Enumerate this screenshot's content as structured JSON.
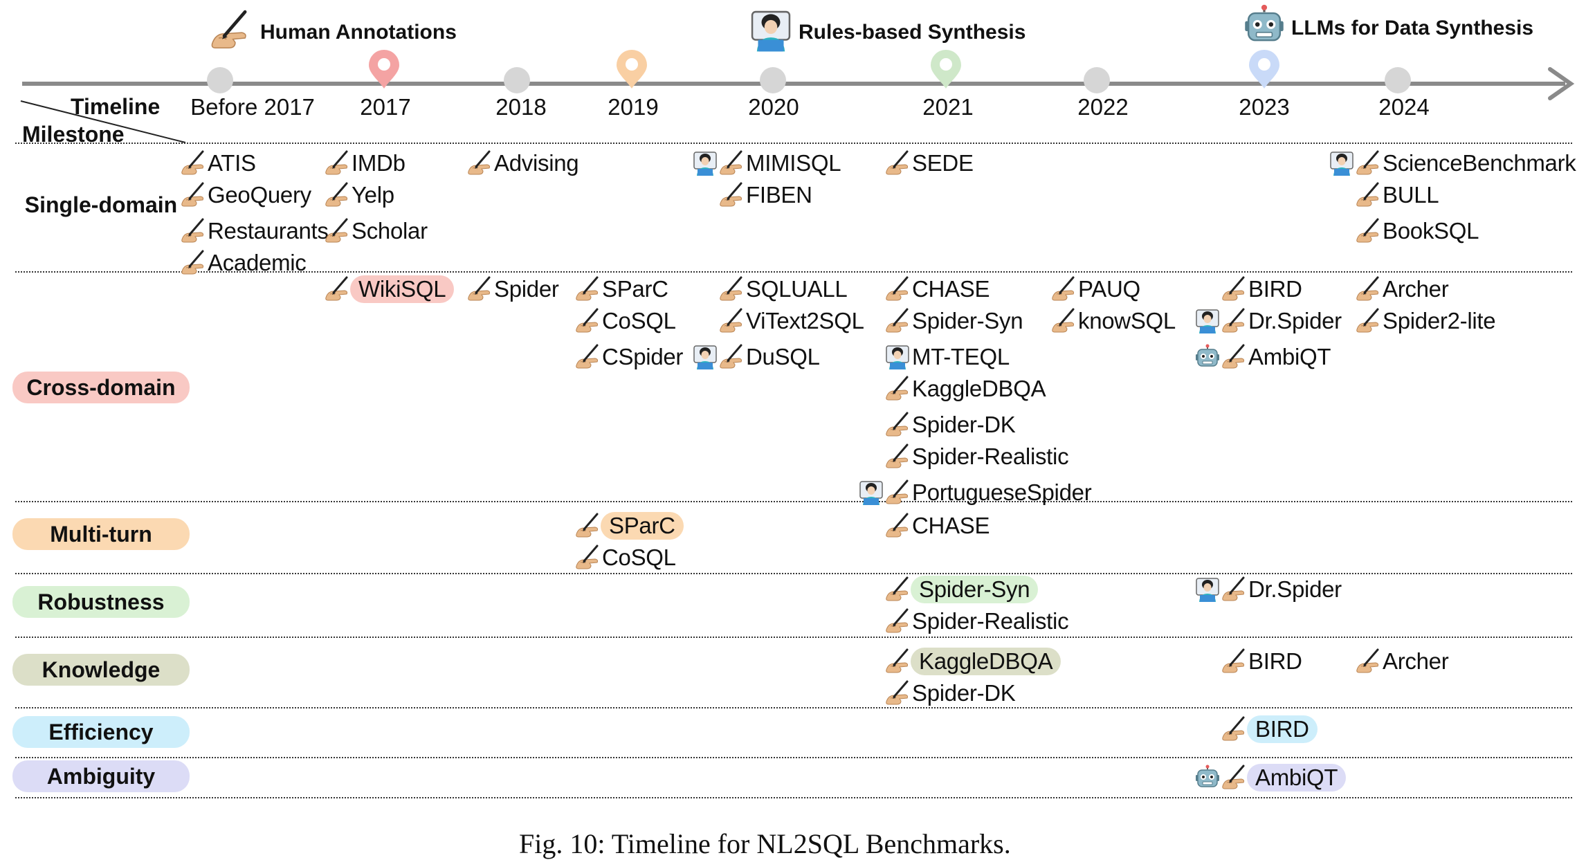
{
  "legend": {
    "human": "Human Annotations",
    "rules": "Rules-based Synthesis",
    "llm": "LLMs for Data Synthesis"
  },
  "axis": {
    "corner_timeline": "Timeline",
    "corner_milestone": "Milestone",
    "years": [
      "Before 2017",
      "2017",
      "2018",
      "2019",
      "2020",
      "2021",
      "2022",
      "2023",
      "2024"
    ]
  },
  "colors": {
    "cross_domain": "#f9c9c4",
    "multi_turn": "#fbd9b2",
    "robustness": "#d9f1d4",
    "knowledge": "#dcdfc8",
    "efficiency": "#cdeefb",
    "ambiguity": "#dcdcf6",
    "timeline": "#8a8a8a",
    "year_dot": "#d6d6d6"
  },
  "markers": [
    {
      "year": "2017",
      "color": "#f4a3a3"
    },
    {
      "year": "2019",
      "color": "#f9cfa3"
    },
    {
      "year": "2021",
      "color": "#cfe8c9"
    },
    {
      "year": "2023",
      "color": "#c9daf8"
    }
  ],
  "rows": [
    {
      "id": "single",
      "label": "Single-domain",
      "color": "",
      "items": [
        {
          "col": "Before 2017",
          "line": 0,
          "icons": [
            "human"
          ],
          "name": "ATIS"
        },
        {
          "col": "Before 2017",
          "line": 1,
          "icons": [
            "human"
          ],
          "name": "GeoQuery"
        },
        {
          "col": "Before 2017",
          "line": 2,
          "icons": [
            "human"
          ],
          "name": "Restaurants"
        },
        {
          "col": "Before 2017",
          "line": 3,
          "icons": [
            "human"
          ],
          "name": "Academic"
        },
        {
          "col": "2017",
          "line": 0,
          "icons": [
            "human"
          ],
          "name": "IMDb"
        },
        {
          "col": "2017",
          "line": 1,
          "icons": [
            "human"
          ],
          "name": "Yelp"
        },
        {
          "col": "2017",
          "line": 2,
          "icons": [
            "human"
          ],
          "name": "Scholar"
        },
        {
          "col": "2018",
          "line": 0,
          "icons": [
            "human"
          ],
          "name": "Advising"
        },
        {
          "col": "2020",
          "line": 0,
          "icons": [
            "rules",
            "human"
          ],
          "name": "MIMISQL"
        },
        {
          "col": "2020",
          "line": 1,
          "icons": [
            "human"
          ],
          "name": "FIBEN"
        },
        {
          "col": "2021",
          "line": 0,
          "icons": [
            "human"
          ],
          "name": "SEDE"
        },
        {
          "col": "2024",
          "line": 0,
          "icons": [
            "rules",
            "human"
          ],
          "name": "ScienceBenchmark"
        },
        {
          "col": "2024",
          "line": 1,
          "icons": [
            "human"
          ],
          "name": "BULL"
        },
        {
          "col": "2024",
          "line": 2,
          "icons": [
            "human"
          ],
          "name": "BookSQL"
        }
      ]
    },
    {
      "id": "cross",
      "label": "Cross-domain",
      "color": "#f9c9c4",
      "items": [
        {
          "col": "2017",
          "line": 0,
          "icons": [
            "human"
          ],
          "name": "WikiSQL",
          "hl": true
        },
        {
          "col": "2018",
          "line": 0,
          "icons": [
            "human"
          ],
          "name": "Spider"
        },
        {
          "col": "2019",
          "line": 0,
          "icons": [
            "human"
          ],
          "name": "SParC"
        },
        {
          "col": "2019",
          "line": 1,
          "icons": [
            "human"
          ],
          "name": "CoSQL"
        },
        {
          "col": "2019",
          "line": 2,
          "icons": [
            "human"
          ],
          "name": "CSpider"
        },
        {
          "col": "2020",
          "line": 0,
          "icons": [
            "human"
          ],
          "name": "SQLUALL"
        },
        {
          "col": "2020",
          "line": 1,
          "icons": [
            "human"
          ],
          "name": "ViText2SQL"
        },
        {
          "col": "2020",
          "line": 2,
          "icons": [
            "rules",
            "human"
          ],
          "name": "DuSQL"
        },
        {
          "col": "2021",
          "line": 0,
          "icons": [
            "human"
          ],
          "name": "CHASE"
        },
        {
          "col": "2021",
          "line": 1,
          "icons": [
            "human"
          ],
          "name": "Spider-Syn"
        },
        {
          "col": "2021",
          "line": 2,
          "icons": [
            "rules"
          ],
          "name": "MT-TEQL"
        },
        {
          "col": "2021",
          "line": 3,
          "icons": [
            "human"
          ],
          "name": "KaggleDBQA"
        },
        {
          "col": "2021",
          "line": 4,
          "icons": [
            "human"
          ],
          "name": "Spider-DK"
        },
        {
          "col": "2021",
          "line": 5,
          "icons": [
            "human"
          ],
          "name": "Spider-Realistic"
        },
        {
          "col": "2021",
          "line": 6,
          "icons": [
            "rules",
            "human"
          ],
          "name": "PortugueseSpider"
        },
        {
          "col": "2022",
          "line": 0,
          "icons": [
            "human"
          ],
          "name": "PAUQ"
        },
        {
          "col": "2022",
          "line": 1,
          "icons": [
            "human"
          ],
          "name": "knowSQL"
        },
        {
          "col": "2023",
          "line": 0,
          "icons": [
            "human"
          ],
          "name": "BIRD"
        },
        {
          "col": "2023",
          "line": 1,
          "icons": [
            "rules",
            "human"
          ],
          "name": "Dr.Spider"
        },
        {
          "col": "2023",
          "line": 2,
          "icons": [
            "llm",
            "human"
          ],
          "name": "AmbiQT"
        },
        {
          "col": "2024",
          "line": 0,
          "icons": [
            "human"
          ],
          "name": "Archer"
        },
        {
          "col": "2024",
          "line": 1,
          "icons": [
            "human"
          ],
          "name": "Spider2-lite"
        }
      ]
    },
    {
      "id": "multi",
      "label": "Multi-turn",
      "color": "#fbd9b2",
      "items": [
        {
          "col": "2019",
          "line": 0,
          "icons": [
            "human"
          ],
          "name": "SParC",
          "hl": true
        },
        {
          "col": "2019",
          "line": 1,
          "icons": [
            "human"
          ],
          "name": "CoSQL"
        },
        {
          "col": "2021",
          "line": 0,
          "icons": [
            "human"
          ],
          "name": "CHASE"
        }
      ]
    },
    {
      "id": "robust",
      "label": "Robustness",
      "color": "#d9f1d4",
      "items": [
        {
          "col": "2021",
          "line": 0,
          "icons": [
            "human"
          ],
          "name": "Spider-Syn",
          "hl": true
        },
        {
          "col": "2021",
          "line": 1,
          "icons": [
            "human"
          ],
          "name": "Spider-Realistic"
        },
        {
          "col": "2023",
          "line": 0,
          "icons": [
            "rules",
            "human"
          ],
          "name": "Dr.Spider"
        }
      ]
    },
    {
      "id": "knowledge",
      "label": "Knowledge",
      "color": "#dcdfc8",
      "items": [
        {
          "col": "2021",
          "line": 0,
          "icons": [
            "human"
          ],
          "name": "KaggleDBQA",
          "hl": true
        },
        {
          "col": "2021",
          "line": 1,
          "icons": [
            "human"
          ],
          "name": "Spider-DK"
        },
        {
          "col": "2023",
          "line": 0,
          "icons": [
            "human"
          ],
          "name": "BIRD"
        },
        {
          "col": "2024",
          "line": 0,
          "icons": [
            "human"
          ],
          "name": "Archer"
        }
      ]
    },
    {
      "id": "efficiency",
      "label": "Efficiency",
      "color": "#cdeefb",
      "items": [
        {
          "col": "2023",
          "line": 0,
          "icons": [
            "human"
          ],
          "name": "BIRD",
          "hl": true
        }
      ]
    },
    {
      "id": "ambiguity",
      "label": "Ambiguity",
      "color": "#dcdcf6",
      "items": [
        {
          "col": "2023",
          "line": 0,
          "icons": [
            "llm",
            "human"
          ],
          "name": "AmbiQT",
          "hl": true
        }
      ]
    }
  ],
  "caption": "Fig. 10: Timeline for NL2SQL Benchmarks."
}
